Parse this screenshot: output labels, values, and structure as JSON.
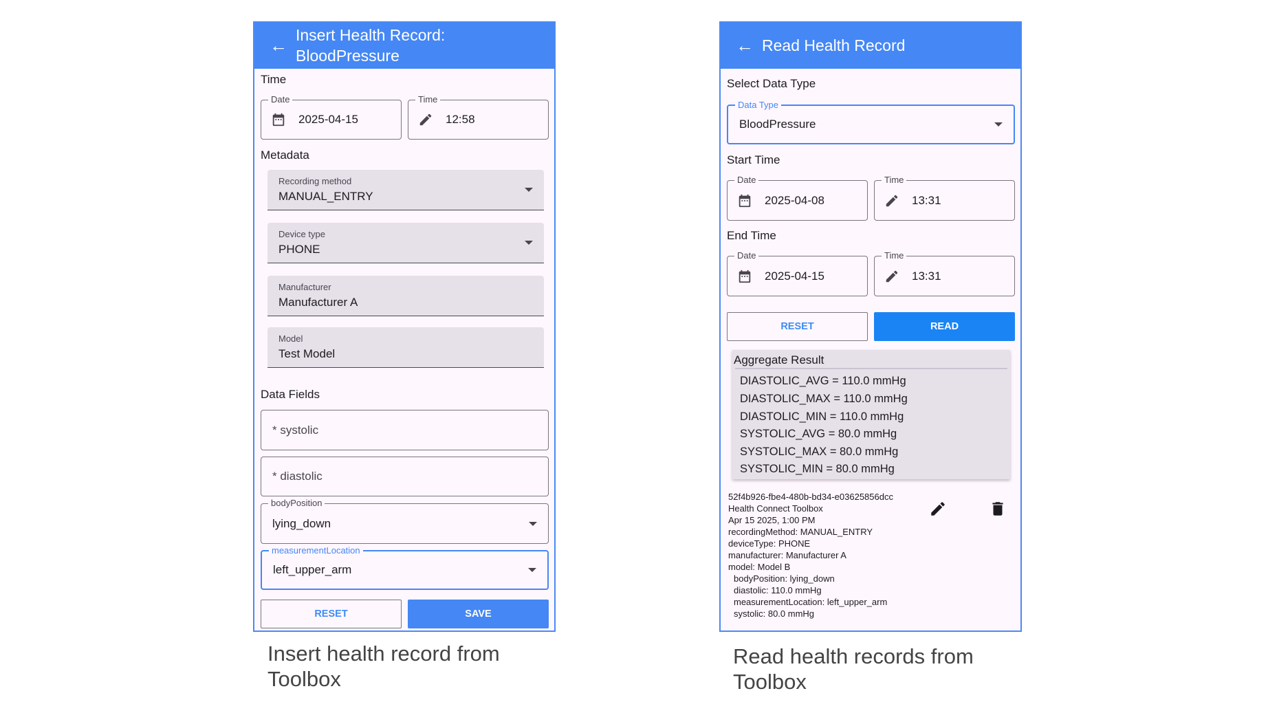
{
  "colors": {
    "header": "#4587f4",
    "accent_button": "#1a84f5",
    "focus": "#4587f4"
  },
  "insert": {
    "title_line1": "Insert Health Record:",
    "title_line2": "BloodPressure",
    "back_icon": "arrow-left",
    "time_section": "Time",
    "date_label": "Date",
    "date_value": "2025-04-15",
    "time_label": "Time",
    "time_value": "12:58",
    "metadata_section": "Metadata",
    "recording_method_label": "Recording method",
    "recording_method_value": "MANUAL_ENTRY",
    "device_type_label": "Device type",
    "device_type_value": "PHONE",
    "manufacturer_label": "Manufacturer",
    "manufacturer_value": "Manufacturer A",
    "model_label": "Model",
    "model_value": "Test Model",
    "data_fields_section": "Data Fields",
    "systolic_placeholder": "* systolic",
    "diastolic_placeholder": "* diastolic",
    "body_position_label": "bodyPosition",
    "body_position_value": "lying_down",
    "measurement_location_label": "measurementLocation",
    "measurement_location_value": "left_upper_arm",
    "reset_label": "RESET",
    "save_label": "SAVE"
  },
  "read": {
    "title": "Read Health Record",
    "select_section": "Select Data Type",
    "data_type_label": "Data Type",
    "data_type_value": "BloodPressure",
    "start_section": "Start Time",
    "start_date_label": "Date",
    "start_date": "2025-04-08",
    "start_time_label": "Time",
    "start_time": "13:31",
    "end_section": "End Time",
    "end_date_label": "Date",
    "end_date": "2025-04-15",
    "end_time_label": "Time",
    "end_time": "13:31",
    "reset_label": "RESET",
    "read_label": "READ",
    "aggregate_title": "Aggregate Result",
    "aggregate": [
      "DIASTOLIC_AVG = 110.0 mmHg",
      "DIASTOLIC_MAX = 110.0 mmHg",
      "DIASTOLIC_MIN = 110.0 mmHg",
      "SYSTOLIC_AVG = 80.0 mmHg",
      "SYSTOLIC_MAX = 80.0 mmHg",
      "SYSTOLIC_MIN = 80.0 mmHg"
    ],
    "record": {
      "id": "52f4b926-fbe4-480b-bd34-e03625856dcc",
      "source": "Health Connect Toolbox",
      "time": "Apr 15 2025, 1:00 PM",
      "recording_method": "recordingMethod: MANUAL_ENTRY",
      "device_type": "deviceType: PHONE",
      "manufacturer": "manufacturer: Manufacturer A",
      "model": "model: Model B",
      "body_position": "bodyPosition: lying_down",
      "diastolic": "diastolic: 110.0 mmHg",
      "measurement_location": "measurementLocation: left_upper_arm",
      "systolic": "systolic: 80.0 mmHg"
    }
  },
  "captions": {
    "left_line1": "Insert health record from",
    "left_line2": "Toolbox",
    "right_line1": "Read health records from",
    "right_line2": "Toolbox"
  }
}
